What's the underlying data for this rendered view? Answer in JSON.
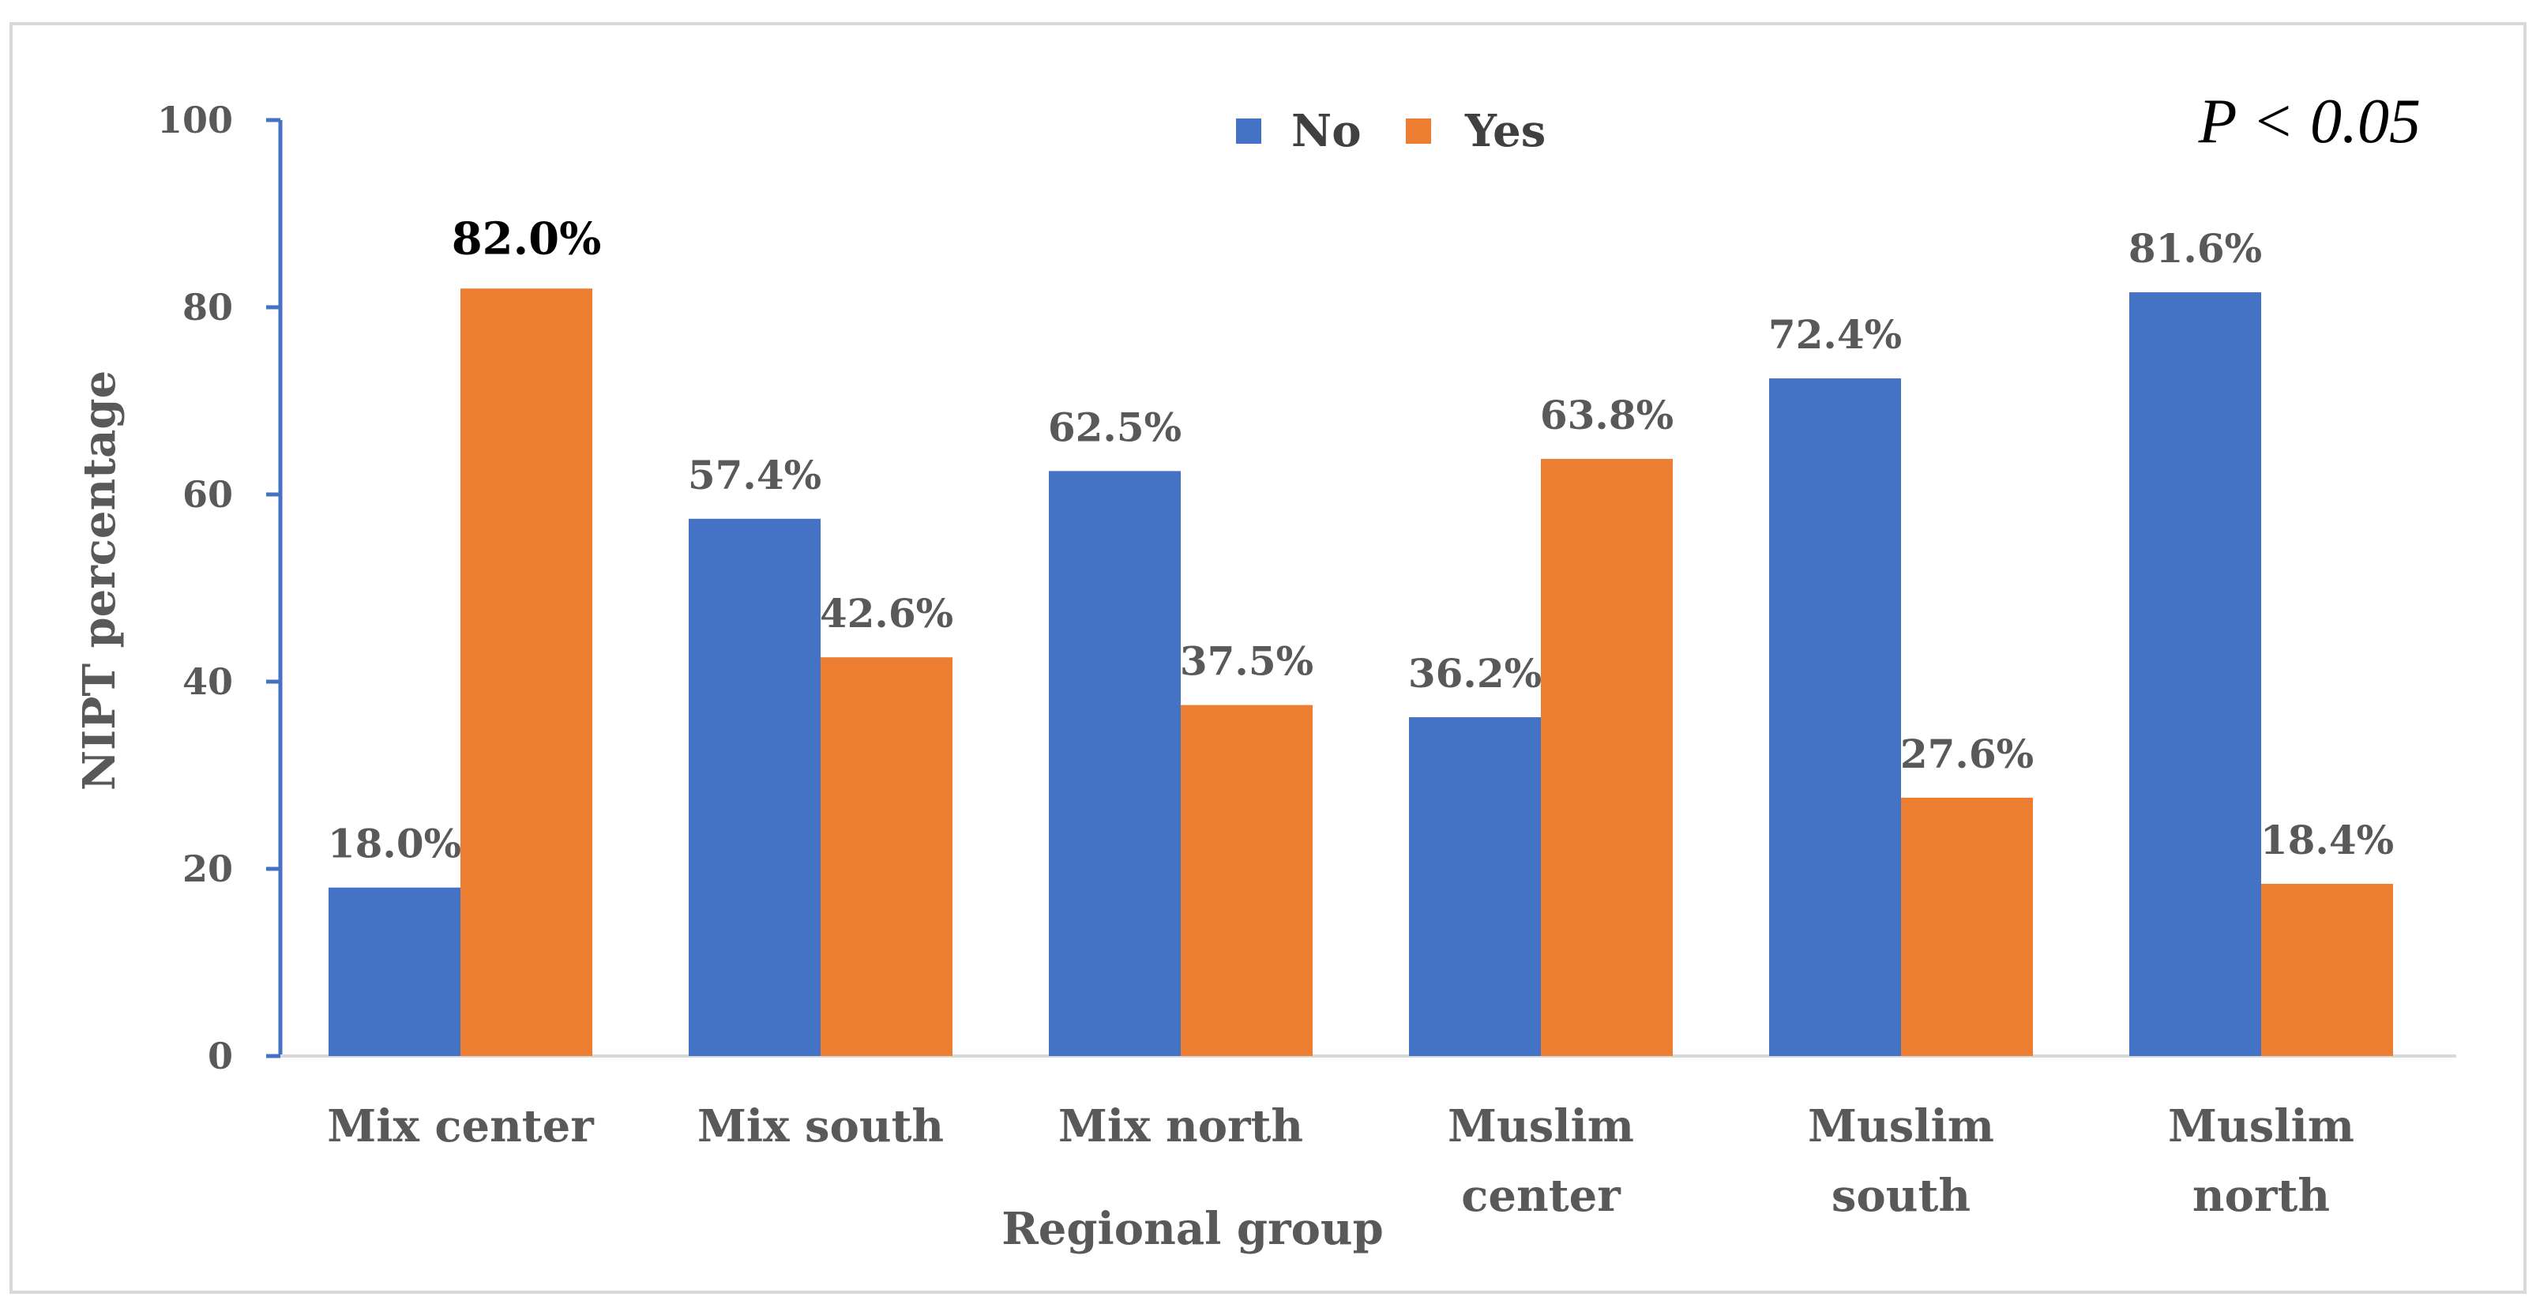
{
  "chart_data": {
    "type": "bar",
    "title": "",
    "xlabel": "Regional group",
    "ylabel": "NIPT percentage",
    "ylim": [
      0,
      100
    ],
    "yticks": [
      0,
      20,
      40,
      60,
      80,
      100
    ],
    "ytick_labels": [
      "0",
      "20",
      "40",
      "60",
      "80",
      "100"
    ],
    "grid": false,
    "legend_position": "top-center",
    "categories": [
      [
        "Mix center"
      ],
      [
        "Mix south"
      ],
      [
        "Mix north"
      ],
      [
        "Muslim",
        "center"
      ],
      [
        "Muslim",
        "south"
      ],
      [
        "Muslim",
        "north"
      ]
    ],
    "series": [
      {
        "name": "No",
        "color": "#4472C4",
        "values": [
          18.0,
          57.4,
          62.5,
          36.2,
          72.4,
          81.6
        ],
        "labels": [
          "18.0%",
          "57.4%",
          "62.5%",
          "36.2%",
          "72.4%",
          "81.6%"
        ]
      },
      {
        "name": "Yes",
        "color": "#ED7D31",
        "values": [
          82.0,
          42.6,
          37.5,
          63.8,
          27.6,
          18.4
        ],
        "labels": [
          "82.0%",
          "42.6%",
          "37.5%",
          "63.8%",
          "27.6%",
          "18.4%"
        ]
      }
    ],
    "emphasized_label": {
      "series": 1,
      "index": 0
    },
    "annotation": "P < 0.05"
  },
  "colors": {
    "axis": "#4472C4",
    "frame": "#D9D9D9"
  }
}
